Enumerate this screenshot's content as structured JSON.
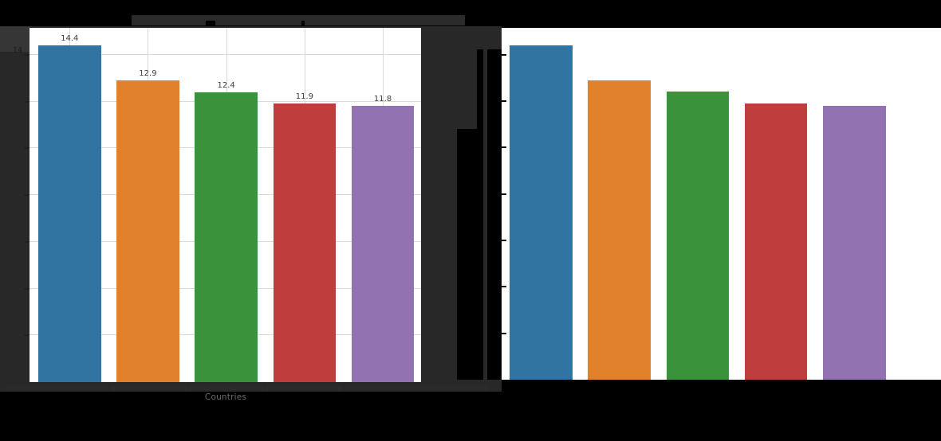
{
  "page": {
    "background_color": "#000000",
    "figure_panel_color": "#282828",
    "highlight_patch_color": "#363636",
    "redaction_color": "#2b2b2b",
    "plot_background_color": "#ffffff",
    "grid_color": "#d9d9d9"
  },
  "left_chart": {
    "title": "",
    "title_legible": false,
    "xlabel": "Countries",
    "ytick_top_label": "14",
    "value_labels": [
      "14.4",
      "12.9",
      "12.4",
      "11.9",
      "11.8"
    ],
    "value_label_color": "#3d3d3d"
  },
  "right_chart": {
    "title": "",
    "xlabel": "",
    "axis_text_visible": false
  },
  "chart_data": [
    {
      "type": "bar",
      "panel": "left",
      "title": "",
      "xlabel": "Countries",
      "ylabel": "",
      "categories": [
        "",
        "",
        "",
        "",
        ""
      ],
      "values": [
        14.4,
        12.9,
        12.4,
        11.9,
        11.8
      ],
      "value_labels": [
        "14.4",
        "12.9",
        "12.4",
        "11.9",
        "11.8"
      ],
      "bar_colors": [
        "#3274a1",
        "#e1812c",
        "#3a923a",
        "#c03d3e",
        "#9372b2"
      ],
      "ylim": [
        0,
        15.15
      ],
      "ytick_step": 2,
      "grid": true,
      "visible_ytick_labels": [
        "14"
      ],
      "legend": "none"
    },
    {
      "type": "bar",
      "panel": "right",
      "title": "",
      "xlabel": "",
      "ylabel": "",
      "categories": [
        "",
        "",
        "",
        "",
        ""
      ],
      "values": [
        14.4,
        12.9,
        12.4,
        11.9,
        11.8
      ],
      "value_labels": [],
      "bar_colors": [
        "#3274a1",
        "#e1812c",
        "#3a923a",
        "#c03d3e",
        "#9372b2"
      ],
      "ylim": [
        0,
        15.15
      ],
      "ytick_step": 2,
      "grid": false,
      "legend": "none"
    }
  ]
}
